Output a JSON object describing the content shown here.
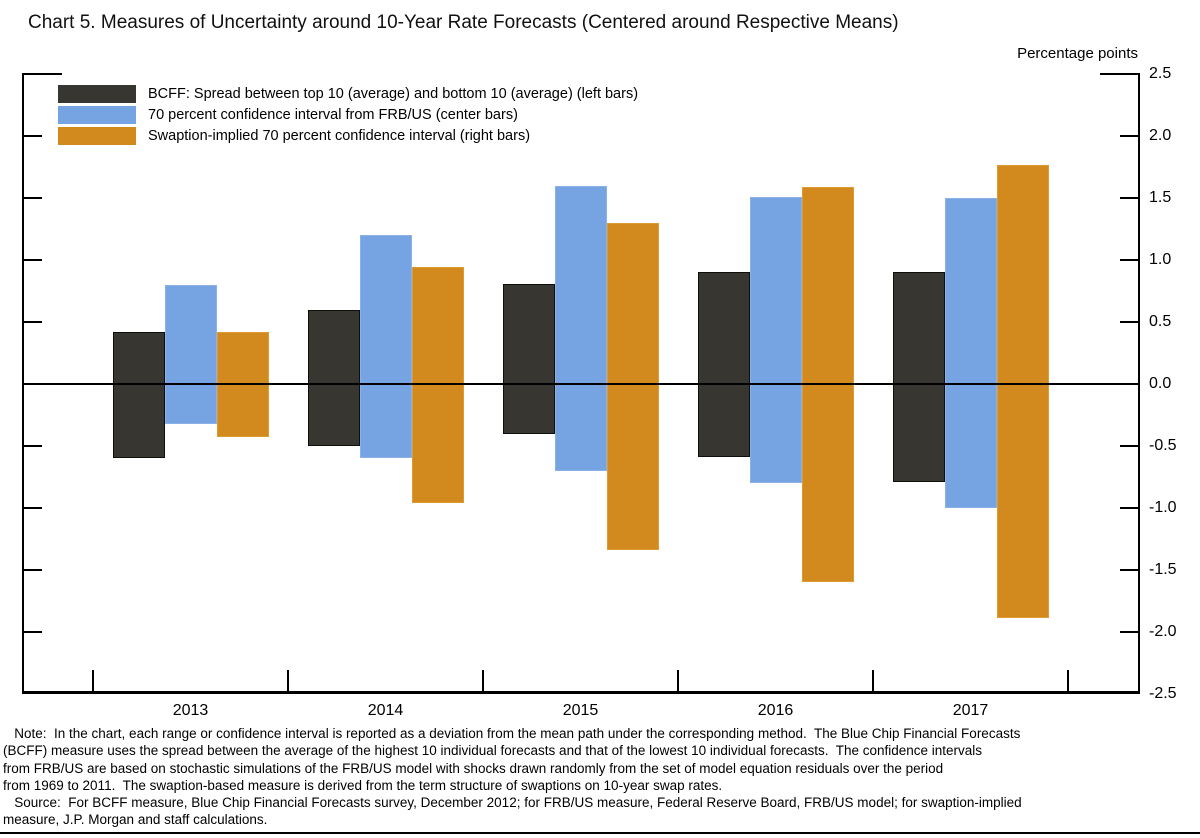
{
  "title": "Chart 5. Measures of Uncertainty around 10-Year Rate Forecasts (Centered around Respective Means)",
  "axis": {
    "unit_label": "Percentage points",
    "y_ticks": [
      2.5,
      2.0,
      1.5,
      1.0,
      0.5,
      0.0,
      -0.5,
      -1.0,
      -1.5,
      -2.0,
      -2.5
    ],
    "y_tick_labels": [
      "2.5",
      "2.0",
      "1.5",
      "1.0",
      "0.5",
      "0.0",
      "-0.5",
      "-1.0",
      "-1.5",
      "-2.0",
      "-2.5"
    ]
  },
  "legend": [
    {
      "key": "bcff",
      "label": "BCFF: Spread between top 10 (average) and bottom 10 (average) (left bars)",
      "color": "#373630"
    },
    {
      "key": "frbus",
      "label": "70 percent confidence interval from FRB/US (center bars)",
      "color": "#76a4e2"
    },
    {
      "key": "swaption",
      "label": "Swaption-implied 70 percent confidence interval (right bars)",
      "color": "#d2891e"
    }
  ],
  "chart_data": {
    "type": "bar",
    "title": "Chart 5. Measures of Uncertainty around 10-Year Rate Forecasts (Centered around Respective Means)",
    "ylabel": "Percentage points",
    "ylim": [
      -2.5,
      2.5
    ],
    "grid": false,
    "legend_position": "top-left",
    "categories": [
      "2013",
      "2014",
      "2015",
      "2016",
      "2017"
    ],
    "series": [
      {
        "key": "bcff",
        "name": "BCFF: Spread between top 10 (average) and bottom 10 (average)",
        "position": "left bars",
        "color": "#373630",
        "upper": [
          0.42,
          0.6,
          0.81,
          0.9,
          0.9
        ],
        "lower": [
          -0.6,
          -0.5,
          -0.4,
          -0.59,
          -0.79
        ]
      },
      {
        "key": "frbus",
        "name": "70 percent confidence interval from FRB/US",
        "position": "center bars",
        "color": "#76a4e2",
        "upper": [
          0.8,
          1.2,
          1.6,
          1.51,
          1.5
        ],
        "lower": [
          -0.32,
          -0.6,
          -0.7,
          -0.8,
          -1.0
        ]
      },
      {
        "key": "swaption",
        "name": "Swaption-implied 70 percent confidence interval",
        "position": "right bars",
        "color": "#d2891e",
        "upper": [
          0.42,
          0.94,
          1.3,
          1.59,
          1.77
        ],
        "lower": [
          -0.43,
          -0.96,
          -1.34,
          -1.6,
          -1.89
        ]
      }
    ]
  },
  "notes": {
    "lines": [
      "   Note:  In the chart, each range or confidence interval is reported as a deviation from the mean path under the corresponding method.  The Blue Chip Financial Forecasts",
      "(BCFF) measure uses the spread between the average of the highest 10 individual forecasts and that of the lowest 10 individual forecasts.  The confidence intervals",
      "from FRB/US are based on stochastic simulations of the FRB/US model with shocks drawn randomly from the set of model equation residuals over the period",
      "from 1969 to 2011.  The swaption-based measure is derived from the term structure of swaptions on 10-year swap rates.",
      "   Source:  For BCFF measure, Blue Chip Financial Forecasts survey, December 2012; for FRB/US measure, Federal Reserve Board, FRB/US model; for swaption-implied",
      "measure, J.P. Morgan and staff calculations."
    ]
  }
}
